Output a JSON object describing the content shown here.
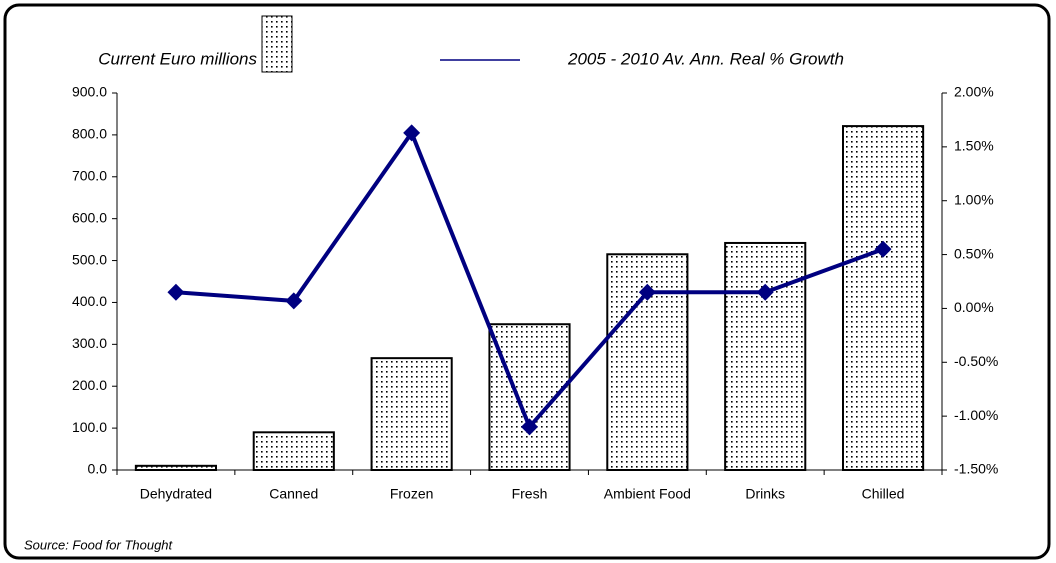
{
  "chart_data": {
    "type": "bar",
    "categories": [
      "Dehydrated",
      "Canned",
      "Frozen",
      "Fresh",
      "Ambient Food",
      "Drinks",
      "Chilled"
    ],
    "series": [
      {
        "name": "Current Euro millions",
        "color": "#000000",
        "values": [
          10,
          90,
          267,
          348,
          515,
          542,
          821
        ]
      },
      {
        "name": "2005 - 2010 Av. Ann. Real % Growth",
        "type": "line",
        "axis": "y2",
        "color": "#000080",
        "values": [
          0.15,
          0.07,
          1.63,
          -1.1,
          0.15,
          0.15,
          0.55
        ]
      }
    ],
    "ylim": [
      0,
      900
    ],
    "yticks": [
      {
        "value": 0,
        "label": "0.0"
      },
      {
        "value": 100,
        "label": "100.0"
      },
      {
        "value": 200,
        "label": "200.0"
      },
      {
        "value": 300,
        "label": "300.0"
      },
      {
        "value": 400,
        "label": "400.0"
      },
      {
        "value": 500,
        "label": "500.0"
      },
      {
        "value": 600,
        "label": "600.0"
      },
      {
        "value": 700,
        "label": "700.0"
      },
      {
        "value": 800,
        "label": "800.0"
      },
      {
        "value": 900,
        "label": "900.0"
      }
    ],
    "y2lim": [
      -1.5,
      2.0
    ],
    "y2ticks": [
      {
        "value": -1.5,
        "label": "-1.50%"
      },
      {
        "value": -1.0,
        "label": "-1.00%"
      },
      {
        "value": -0.5,
        "label": "-0.50%"
      },
      {
        "value": 0,
        "label": "0.00%"
      },
      {
        "value": 0.5,
        "label": "0.50%"
      },
      {
        "value": 1.0,
        "label": "1.00%"
      },
      {
        "value": 1.5,
        "label": "1.50%"
      },
      {
        "value": 2.0,
        "label": "2.00%"
      }
    ],
    "grid": false,
    "source": "Source: Food for Thought"
  }
}
